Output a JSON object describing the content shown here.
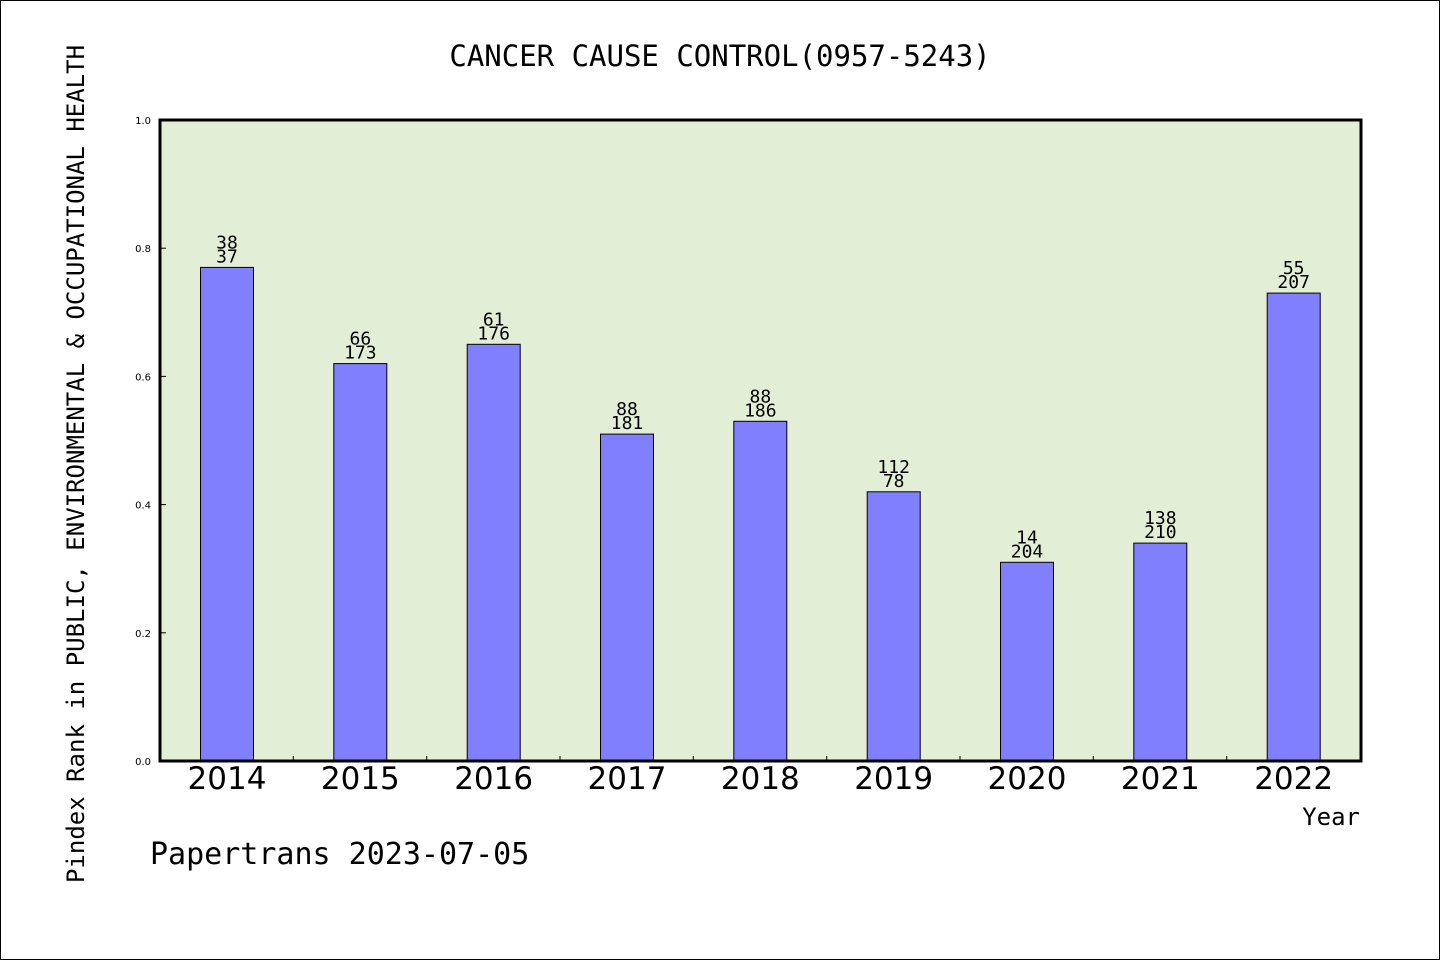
{
  "chart_data": {
    "type": "bar",
    "title": "CANCER CAUSE CONTROL(0957-5243)",
    "xlabel": "Year",
    "ylabel": "Pindex Rank in PUBLIC, ENVIRONMENTAL & OCCUPATIONAL HEALTH",
    "categories": [
      "2014",
      "2015",
      "2016",
      "2017",
      "2018",
      "2019",
      "2020",
      "2021",
      "2022"
    ],
    "values": [
      0.77,
      0.62,
      0.65,
      0.51,
      0.53,
      0.42,
      0.31,
      0.34,
      0.73
    ],
    "label_top": [
      "38",
      "66",
      "61",
      "88",
      "88",
      "112",
      "14",
      "138",
      "55"
    ],
    "label_bottom": [
      "37",
      "173",
      "176",
      "181",
      "186",
      "78",
      "204",
      "210",
      "207"
    ],
    "ylim": [
      0,
      1.0
    ],
    "yticks": [
      "0.0",
      "0.2",
      "0.4",
      "0.6",
      "0.8",
      "1.0"
    ],
    "grid": false,
    "colors": {
      "plot_background": "#e2efd6",
      "bar_fill": "#8080ff",
      "bar_edge": "#000000"
    }
  },
  "footer": "Papertrans 2023-07-05"
}
